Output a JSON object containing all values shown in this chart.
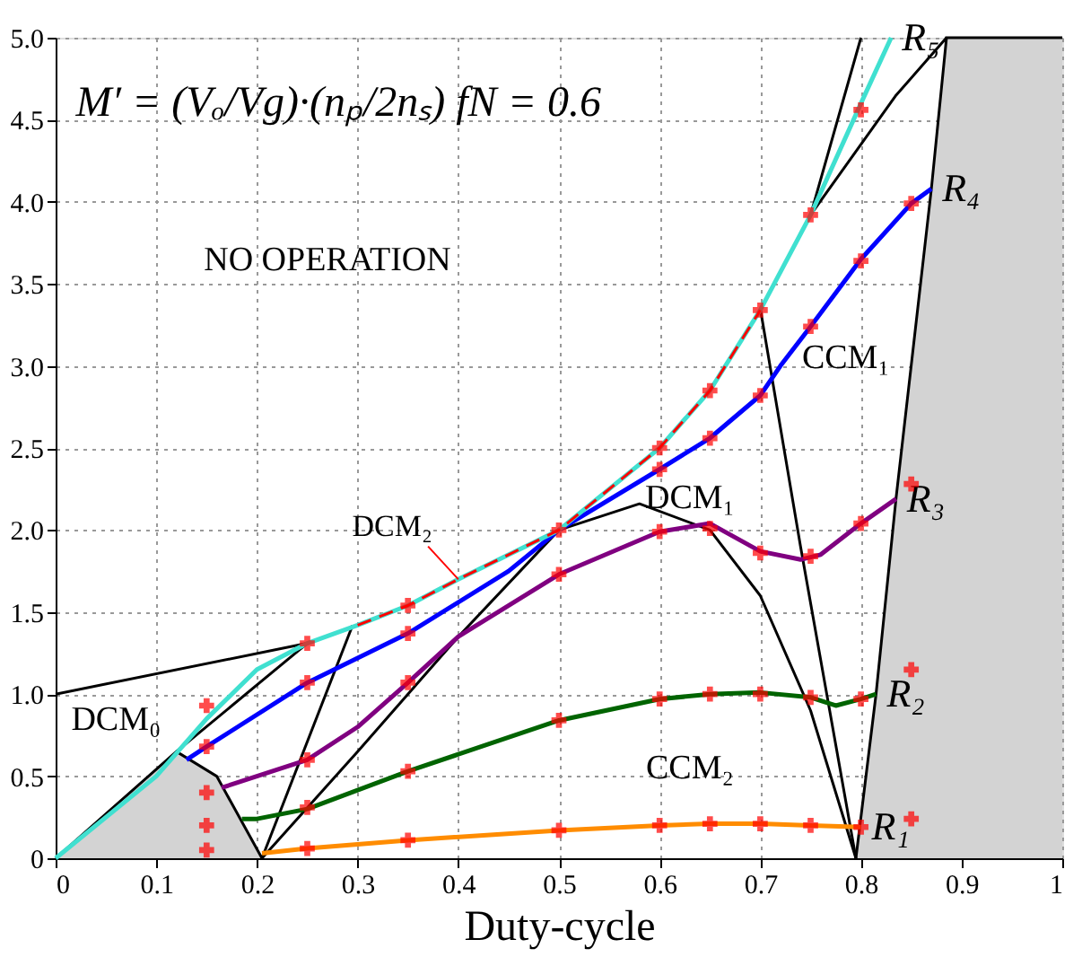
{
  "chart_data": {
    "type": "line",
    "xlabel": "Duty-cycle",
    "xlim": [
      0,
      1
    ],
    "ylim": [
      0,
      5
    ],
    "xticks": [
      0,
      0.1,
      0.2,
      0.3,
      0.4,
      0.5,
      0.6,
      0.7,
      0.8,
      0.9,
      1
    ],
    "yticks": [
      0,
      {
        "value": 0.5,
        "label": "0.5"
      },
      {
        "value": 1,
        "label": "1.0"
      },
      {
        "value": 1.5,
        "label": "1.5"
      },
      {
        "value": 2,
        "label": "2.0"
      },
      {
        "value": 2.5,
        "label": "2.5"
      },
      {
        "value": 3,
        "label": "3.0"
      },
      {
        "value": 3.5,
        "label": "3.5"
      },
      {
        "value": 4,
        "label": "4.0"
      },
      {
        "value": 4.5,
        "label": "4.5"
      },
      {
        "value": 5,
        "label": "5.0"
      }
    ],
    "grid": true,
    "series": [
      {
        "type": "area",
        "color": "#d3d3d3",
        "x": [
          0,
          0.12,
          0.16,
          0.205
        ],
        "values": [
          0,
          0.65,
          0.5,
          0
        ]
      },
      {
        "type": "area",
        "color": "#d3d3d3",
        "x": [
          0.795,
          0.815,
          0.835,
          0.87,
          0.885,
          1
        ],
        "values": [
          0,
          1.0,
          2.2,
          4.08,
          5.0,
          5.0
        ]
      },
      {
        "color": "#000000",
        "x": [
          0,
          0.25
        ],
        "values": [
          1,
          1.31
        ]
      },
      {
        "color": "#000000",
        "x": [
          0.12,
          0.25
        ],
        "values": [
          0.65,
          1.31
        ]
      },
      {
        "color": "#000000",
        "x": [
          0.205,
          0.295
        ],
        "values": [
          0,
          1.42
        ]
      },
      {
        "color": "#000000",
        "x": [
          0.205,
          0.3,
          0.4,
          0.5,
          0.58,
          0.65,
          0.7,
          0.75,
          0.795
        ],
        "values": [
          0,
          0.65,
          1.35,
          2.0,
          2.16,
          2.0,
          1.6,
          0.9,
          0
        ]
      },
      {
        "color": "#000000",
        "x": [
          0.7,
          0.74,
          0.795
        ],
        "values": [
          3.35,
          1.9,
          0
        ]
      },
      {
        "color": "#000000",
        "x": [
          0.75,
          0.835,
          0.885
        ],
        "values": [
          3.92,
          4.65,
          5.0
        ]
      },
      {
        "color": "#000000",
        "x": [
          0.7,
          0.75,
          0.8
        ],
        "values": [
          3.34,
          3.92,
          5.0
        ]
      },
      {
        "name": "R₁",
        "color": "#ff8c00",
        "x": [
          0.205,
          0.25,
          0.35,
          0.5,
          0.6,
          0.65,
          0.7,
          0.75,
          0.8
        ],
        "values": [
          0.03,
          0.06,
          0.11,
          0.17,
          0.2,
          0.21,
          0.21,
          0.2,
          0.19
        ]
      },
      {
        "name": "R₂",
        "color": "#006400",
        "x": [
          0.185,
          0.2,
          0.25,
          0.35,
          0.5,
          0.6,
          0.65,
          0.7,
          0.75,
          0.775,
          0.8,
          0.815
        ],
        "values": [
          0.24,
          0.24,
          0.3,
          0.53,
          0.84,
          0.97,
          1.0,
          1.01,
          0.98,
          0.93,
          0.97,
          1.0
        ]
      },
      {
        "name": "R₃",
        "color": "#800080",
        "x": [
          0.165,
          0.25,
          0.3,
          0.35,
          0.4,
          0.5,
          0.6,
          0.65,
          0.7,
          0.74,
          0.76,
          0.8,
          0.835
        ],
        "values": [
          0.43,
          0.6,
          0.8,
          1.07,
          1.35,
          1.73,
          1.99,
          2.04,
          1.87,
          1.82,
          1.85,
          2.04,
          2.19
        ]
      },
      {
        "name": "R₄",
        "color": "#0000ff",
        "x": [
          0.13,
          0.15,
          0.25,
          0.35,
          0.45,
          0.5,
          0.6,
          0.65,
          0.7,
          0.72,
          0.75,
          0.8,
          0.85,
          0.87
        ],
        "values": [
          0.6,
          0.68,
          1.07,
          1.37,
          1.75,
          2.0,
          2.37,
          2.56,
          2.82,
          3.0,
          3.24,
          3.65,
          3.99,
          4.08
        ]
      },
      {
        "name": "R₅",
        "color": "#40e0d0",
        "x": [
          0,
          0.1,
          0.15,
          0.2,
          0.25,
          0.3,
          0.35,
          0.4,
          0.5,
          0.6,
          0.65,
          0.7,
          0.75,
          0.8,
          0.83
        ],
        "values": [
          0,
          0.5,
          0.85,
          1.15,
          1.31,
          1.42,
          1.54,
          1.7,
          2.0,
          2.5,
          2.85,
          3.34,
          3.92,
          4.6,
          5.0
        ]
      },
      {
        "color": "#ff0000",
        "line_style": "dashed",
        "x": [
          0.3,
          0.35,
          0.4,
          0.5,
          0.6,
          0.65,
          0.7
        ],
        "values": [
          1.42,
          1.54,
          1.7,
          2.0,
          2.5,
          2.85,
          3.34
        ]
      },
      {
        "type": "scatter",
        "color": "#ff0000",
        "marker": "cross",
        "x": [
          0.15,
          0.15,
          0.15,
          0.15,
          0.15,
          0.25,
          0.25,
          0.25,
          0.25,
          0.25,
          0.35,
          0.35,
          0.35,
          0.35,
          0.35,
          0.5,
          0.5,
          0.5,
          0.5,
          0.6,
          0.6,
          0.6,
          0.6,
          0.6,
          0.65,
          0.65,
          0.65,
          0.65,
          0.65,
          0.7,
          0.7,
          0.7,
          0.7,
          0.7,
          0.75,
          0.75,
          0.75,
          0.75,
          0.75,
          0.8,
          0.8,
          0.8,
          0.8,
          0.8,
          0.85,
          0.85,
          0.85,
          0.85
        ],
        "values": [
          0.93,
          0.68,
          0.4,
          0.2,
          0.05,
          1.31,
          1.07,
          0.6,
          0.31,
          0.06,
          1.54,
          1.37,
          1.07,
          0.53,
          0.11,
          2.0,
          1.73,
          0.84,
          0.17,
          2.5,
          2.37,
          1.99,
          0.97,
          0.2,
          2.85,
          2.56,
          2.01,
          1.0,
          0.21,
          3.34,
          2.82,
          1.86,
          1.0,
          0.21,
          3.92,
          3.24,
          1.84,
          0.98,
          0.2,
          4.56,
          3.64,
          2.04,
          0.97,
          0.19,
          3.99,
          2.28,
          1.15,
          0.24
        ]
      }
    ],
    "annotations": [
      "M′ = (Vₒ/Vg)·(nₚ/2nₛ)    fN = 0.6",
      "NO OPERATION",
      "DCM₀",
      "DCM₁",
      {
        "text": "DCM₂",
        "x": 0.4,
        "y": 1.7
      },
      "CCM₁",
      "CCM₂"
    ]
  }
}
